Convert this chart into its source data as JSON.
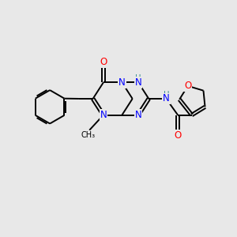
{
  "bg_color": "#e8e8e8",
  "bond_color": "#000000",
  "N_color": "#0000ff",
  "O_color": "#ff0000",
  "NH_color": "#3a9090",
  "line_width": 1.4,
  "font_size": 8.5,
  "fig_w": 3.0,
  "fig_h": 3.0,
  "dpi": 100,
  "xlim": [
    0,
    10
  ],
  "ylim": [
    0,
    10
  ]
}
